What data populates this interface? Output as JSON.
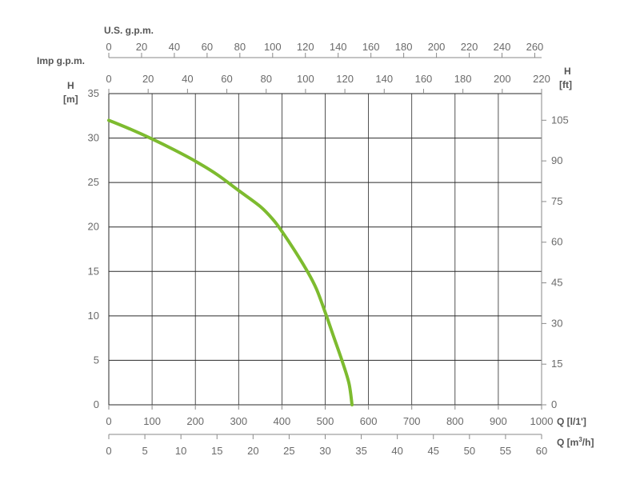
{
  "chart_data": {
    "type": "line",
    "curve_color": "#7dbb2f",
    "grid": true,
    "axes": {
      "q_lpm": {
        "label": "Q [l/1']",
        "range": [
          0,
          1000
        ],
        "ticks": [
          0,
          100,
          200,
          300,
          400,
          500,
          600,
          700,
          800,
          900,
          1000
        ]
      },
      "q_m3h": {
        "label_main": "Q [m",
        "label_sup": "3",
        "label_end": "/h]",
        "range": [
          0,
          60
        ],
        "ticks": [
          0,
          5,
          10,
          15,
          20,
          25,
          30,
          35,
          40,
          45,
          50,
          55,
          60
        ]
      },
      "imp_gpm": {
        "label": "Imp g.p.m.",
        "range": [
          0,
          220
        ],
        "ticks": [
          0,
          20,
          40,
          60,
          80,
          100,
          120,
          140,
          160,
          180,
          200,
          220
        ]
      },
      "us_gpm": {
        "label": "U.S. g.p.m.",
        "range": [
          0,
          264.17
        ],
        "ticks": [
          0,
          20,
          40,
          60,
          80,
          100,
          120,
          140,
          160,
          180,
          200,
          220,
          240,
          260
        ]
      },
      "h_m": {
        "label_line1": "H",
        "label_line2": "[m]",
        "range": [
          0,
          35
        ],
        "ticks": [
          0,
          5,
          10,
          15,
          20,
          25,
          30,
          35
        ]
      },
      "h_ft": {
        "label_line1": "H",
        "label_line2": "[ft]",
        "range": [
          0,
          114.83
        ],
        "ticks": [
          0,
          15,
          30,
          45,
          60,
          75,
          90,
          105
        ]
      }
    },
    "series": [
      {
        "x_q_lpm": [
          0,
          50,
          100,
          150,
          200,
          250,
          300,
          350,
          380,
          400,
          430,
          460,
          480,
          500,
          520,
          540,
          555,
          562
        ],
        "y_h_m": [
          32,
          31,
          29.9,
          28.7,
          27.4,
          25.9,
          24.1,
          22.3,
          20.8,
          19.5,
          17.3,
          14.9,
          13.0,
          10.4,
          7.6,
          4.8,
          2.4,
          0
        ]
      }
    ]
  }
}
